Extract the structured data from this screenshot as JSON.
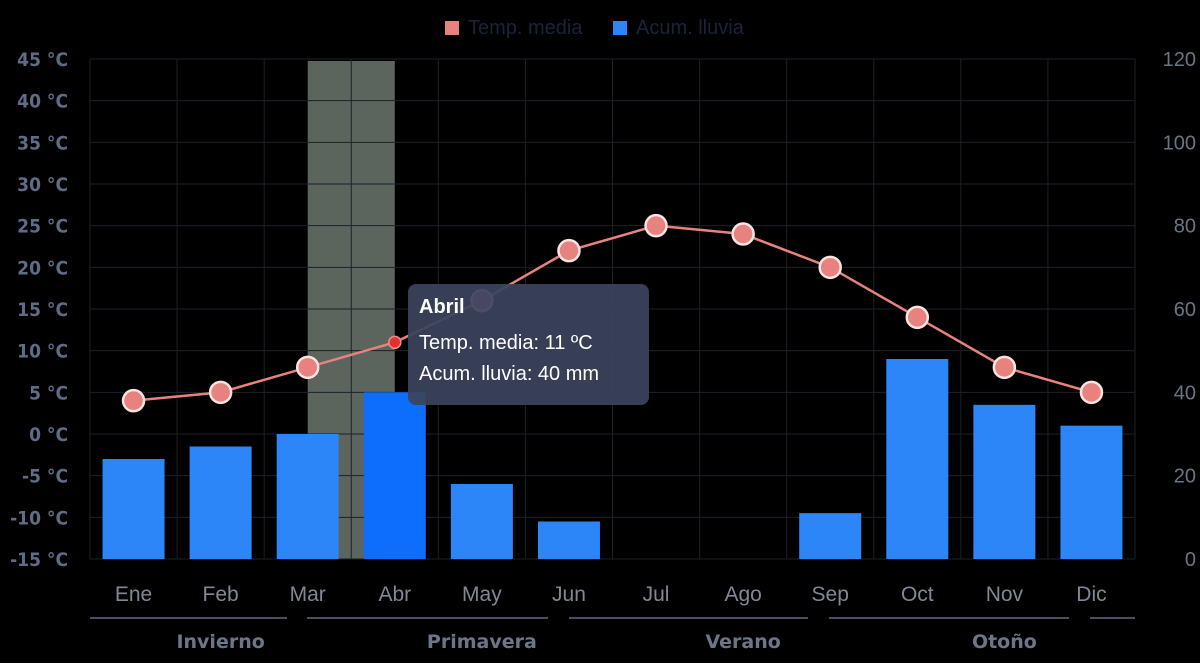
{
  "chart_data": {
    "type": "bar",
    "categories": [
      "Ene",
      "Feb",
      "Mar",
      "Abr",
      "May",
      "Jun",
      "Jul",
      "Ago",
      "Sep",
      "Oct",
      "Nov",
      "Dic"
    ],
    "series": [
      {
        "name": "Temp. media",
        "type": "line",
        "axis": "left",
        "color": "#e8827f",
        "values": [
          4,
          5,
          8,
          11,
          16,
          22,
          25,
          24,
          20,
          14,
          8,
          5
        ]
      },
      {
        "name": "Acum. lluvia",
        "type": "bar",
        "axis": "right",
        "color": "#2d86f8",
        "values": [
          24,
          27,
          30,
          40,
          18,
          9,
          0,
          0,
          11,
          48,
          37,
          32
        ]
      }
    ],
    "y_left": {
      "ticks": [
        "45 °C",
        "40 °C",
        "35 °C",
        "30 °C",
        "25 °C",
        "20 °C",
        "15 °C",
        "10 °C",
        "5 °C",
        "0 °C",
        "-5 °C",
        "-10 °C",
        "-15 °C"
      ],
      "min": -15,
      "max": 45
    },
    "y_right": {
      "ticks": [
        "120",
        "100",
        "80",
        "60",
        "40",
        "20",
        "0"
      ],
      "min": 0,
      "max": 120
    },
    "seasons": [
      "Invierno",
      "Primavera",
      "Verano",
      "Otoño"
    ],
    "legend": {
      "placement": "top-center",
      "items": [
        "Temp. media",
        "Acum. lluvia"
      ]
    },
    "highlight_category": "Abr",
    "tooltip": {
      "title": "Abril",
      "line1": "Temp. media: 11 ºC",
      "line2": "Acum. lluvia: 40 mm"
    },
    "colors": {
      "background": "#000000",
      "temp_line": "#e8827f",
      "rain_bar": "#2d86f8",
      "rain_bar_active": "#0d6dfd",
      "highlight_band": "#5c645e"
    }
  }
}
